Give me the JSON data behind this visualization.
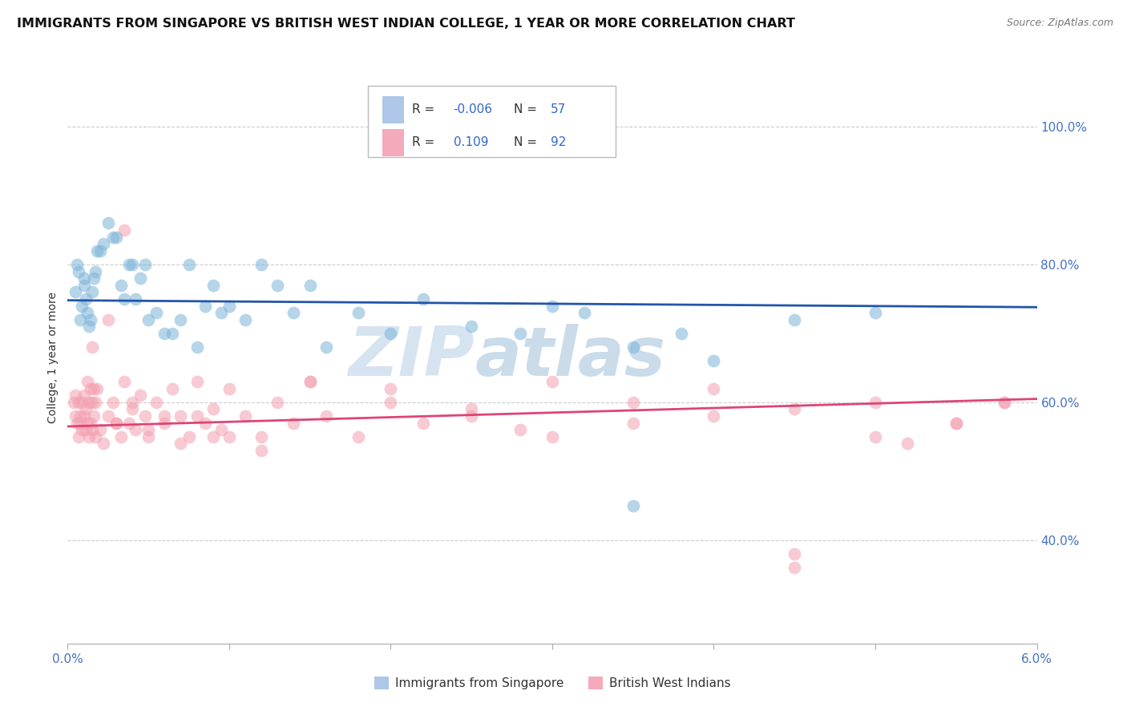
{
  "title": "IMMIGRANTS FROM SINGAPORE VS BRITISH WEST INDIAN COLLEGE, 1 YEAR OR MORE CORRELATION CHART",
  "source": "Source: ZipAtlas.com",
  "ylabel": "College, 1 year or more",
  "xlim": [
    0.0,
    6.0
  ],
  "ylim": [
    25.0,
    108.0
  ],
  "yticks": [
    40.0,
    60.0,
    80.0,
    100.0
  ],
  "ytick_labels": [
    "40.0%",
    "60.0%",
    "80.0%",
    "100.0%"
  ],
  "watermark_zip": "ZIP",
  "watermark_atlas": "atlas",
  "blue_color": "#7ab4d8",
  "pink_color": "#f4a0b0",
  "blue_line_color": "#2255aa",
  "pink_line_color": "#dd4477",
  "blue_scatter_x": [
    0.05,
    0.06,
    0.07,
    0.08,
    0.09,
    0.1,
    0.1,
    0.11,
    0.12,
    0.13,
    0.14,
    0.15,
    0.16,
    0.17,
    0.18,
    0.2,
    0.22,
    0.25,
    0.28,
    0.3,
    0.33,
    0.35,
    0.38,
    0.4,
    0.42,
    0.45,
    0.48,
    0.5,
    0.55,
    0.6,
    0.65,
    0.7,
    0.75,
    0.8,
    0.85,
    0.9,
    0.95,
    1.0,
    1.1,
    1.2,
    1.3,
    1.4,
    1.5,
    1.6,
    1.8,
    2.0,
    2.2,
    2.5,
    2.8,
    3.0,
    3.2,
    3.5,
    3.8,
    4.0,
    4.5,
    5.0,
    3.5
  ],
  "blue_scatter_y": [
    76,
    80,
    79,
    72,
    74,
    77,
    78,
    75,
    73,
    71,
    72,
    76,
    78,
    79,
    82,
    82,
    83,
    86,
    84,
    84,
    77,
    75,
    80,
    80,
    75,
    78,
    80,
    72,
    73,
    70,
    70,
    72,
    80,
    68,
    74,
    77,
    73,
    74,
    72,
    80,
    77,
    73,
    77,
    68,
    73,
    70,
    75,
    71,
    70,
    74,
    73,
    68,
    70,
    66,
    72,
    73,
    45
  ],
  "pink_scatter_x": [
    0.04,
    0.05,
    0.05,
    0.06,
    0.07,
    0.07,
    0.08,
    0.08,
    0.09,
    0.09,
    0.1,
    0.1,
    0.11,
    0.11,
    0.12,
    0.12,
    0.13,
    0.13,
    0.14,
    0.14,
    0.15,
    0.15,
    0.16,
    0.16,
    0.17,
    0.17,
    0.18,
    0.2,
    0.22,
    0.25,
    0.28,
    0.3,
    0.33,
    0.35,
    0.38,
    0.4,
    0.42,
    0.45,
    0.48,
    0.5,
    0.55,
    0.6,
    0.65,
    0.7,
    0.75,
    0.8,
    0.85,
    0.9,
    0.95,
    1.0,
    1.1,
    1.2,
    1.3,
    1.4,
    1.5,
    1.6,
    1.8,
    2.0,
    2.2,
    2.5,
    2.8,
    3.0,
    3.5,
    4.0,
    4.5,
    5.0,
    5.5,
    5.8,
    4.5,
    0.3,
    0.4,
    0.5,
    0.6,
    0.7,
    0.8,
    0.9,
    1.0,
    1.2,
    1.5,
    2.0,
    2.5,
    3.0,
    3.5,
    4.0,
    4.5,
    5.0,
    5.2,
    5.5,
    5.8,
    0.15,
    0.25,
    0.35
  ],
  "pink_scatter_y": [
    60,
    61,
    58,
    57,
    55,
    60,
    58,
    57,
    56,
    60,
    61,
    58,
    56,
    59,
    63,
    57,
    60,
    55,
    57,
    62,
    56,
    60,
    58,
    62,
    55,
    60,
    62,
    56,
    54,
    58,
    60,
    57,
    55,
    63,
    57,
    60,
    56,
    61,
    58,
    55,
    60,
    57,
    62,
    58,
    55,
    63,
    57,
    59,
    56,
    62,
    58,
    55,
    60,
    57,
    63,
    58,
    55,
    62,
    57,
    59,
    56,
    63,
    60,
    58,
    38,
    60,
    57,
    60,
    36,
    57,
    59,
    56,
    58,
    54,
    58,
    55,
    55,
    53,
    63,
    60,
    58,
    55,
    57,
    62,
    59,
    55,
    54,
    57,
    60,
    68,
    72,
    85
  ],
  "blue_trendline_x": [
    0.0,
    6.0
  ],
  "blue_trendline_y": [
    74.8,
    73.8
  ],
  "pink_trendline_x": [
    0.0,
    6.0
  ],
  "pink_trendline_y": [
    56.5,
    60.5
  ],
  "legend_box_r1": "R = ",
  "legend_box_v1": "-0.006",
  "legend_box_n1": "N = ",
  "legend_box_n1v": "57",
  "legend_box_r2": "R = ",
  "legend_box_v2": "0.109",
  "legend_box_n2": "N = ",
  "legend_box_n2v": "92",
  "legend_bottom_blue": "Immigrants from Singapore",
  "legend_bottom_pink": "British West Indians",
  "background_color": "#ffffff",
  "grid_color": "#cccccc",
  "tick_color": "#4472c4",
  "text_color": "#333333",
  "title_color": "#111111"
}
